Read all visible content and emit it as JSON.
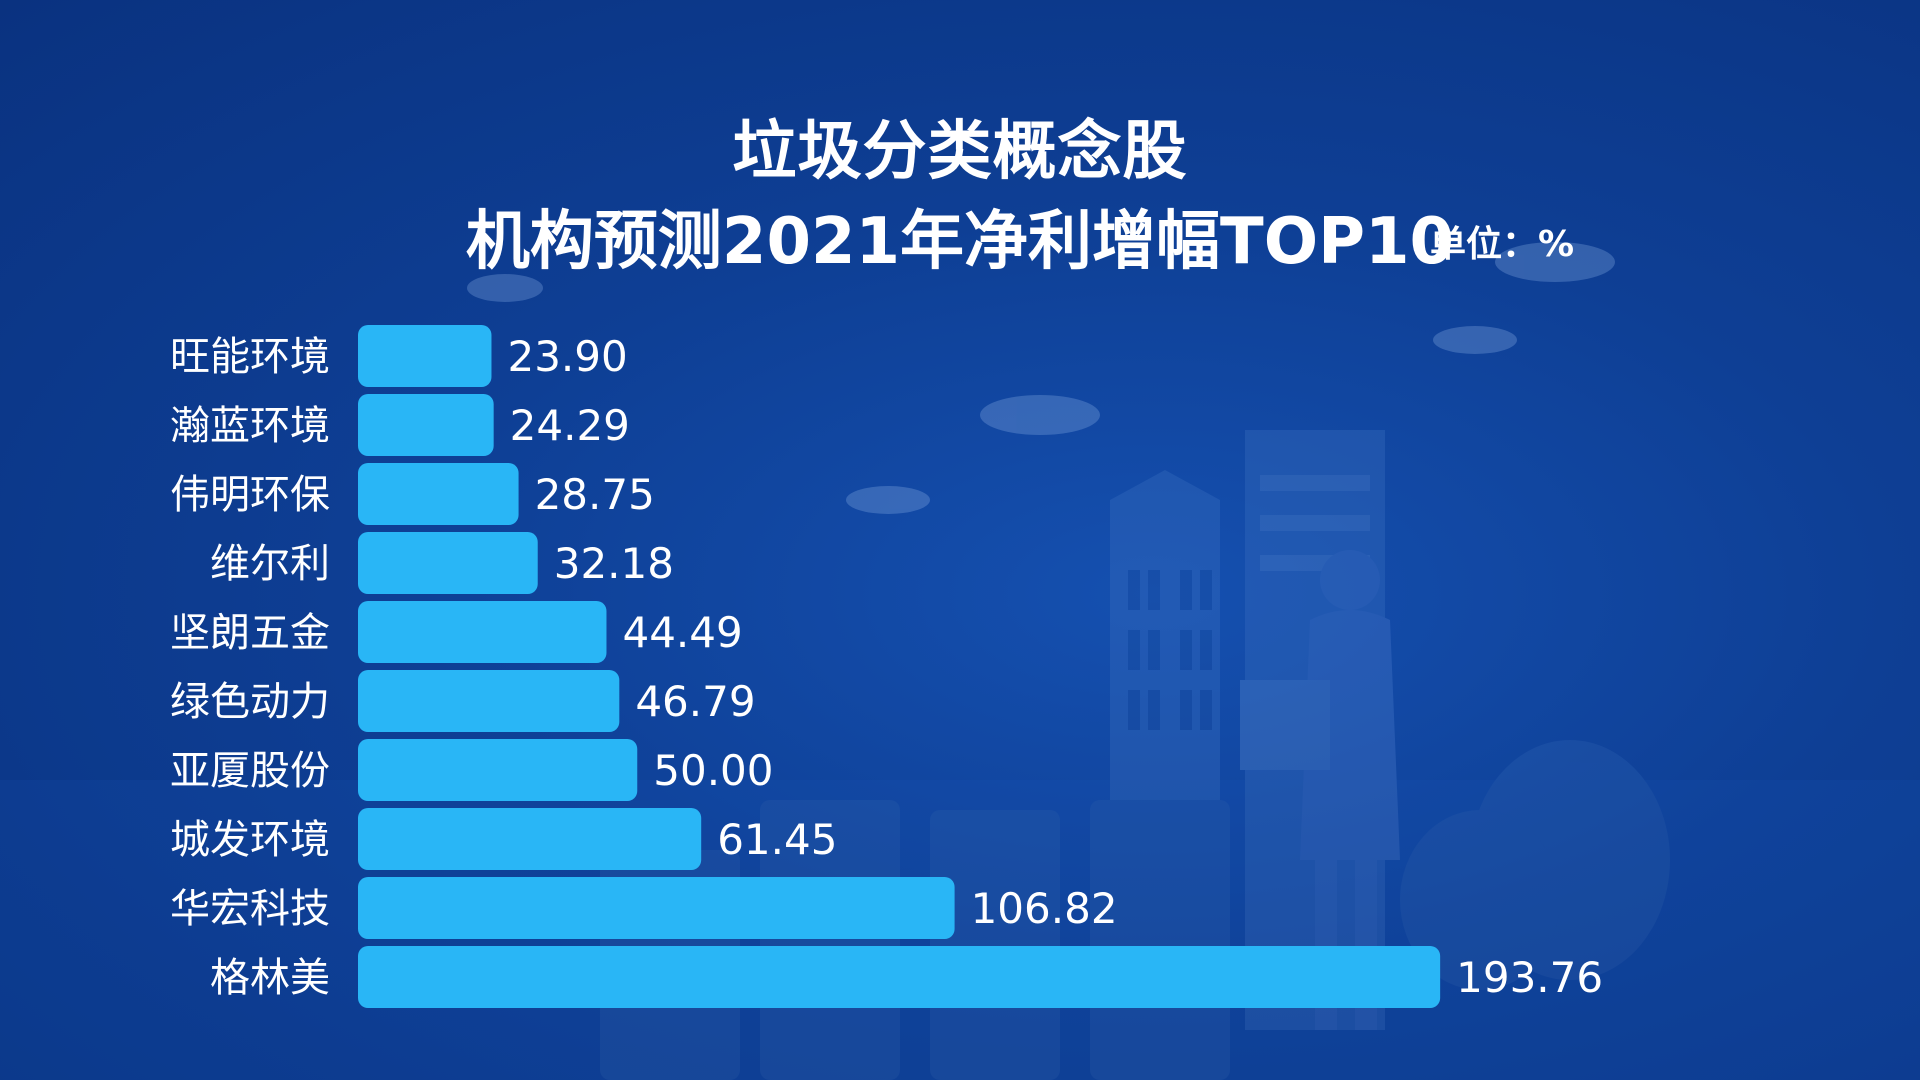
{
  "title_line1": "垃圾分类概念股",
  "title_line2": "机构预测2021年净利增幅TOP10",
  "unit_label": "单位：%",
  "colors": {
    "bar": "#29b6f6",
    "background": "#0e3f95",
    "text": "#ffffff"
  },
  "chart_data": {
    "type": "bar",
    "orientation": "horizontal",
    "title": "垃圾分类概念股 机构预测2021年净利增幅TOP10",
    "unit": "%",
    "categories": [
      "旺能环境",
      "瀚蓝环境",
      "伟明环保",
      "维尔利",
      "坚朗五金",
      "绿色动力",
      "亚厦股份",
      "城发环境",
      "华宏科技",
      "格林美"
    ],
    "values": [
      23.9,
      24.29,
      28.75,
      32.18,
      44.49,
      46.79,
      50.0,
      61.45,
      106.82,
      193.76
    ],
    "value_labels": [
      "23.90",
      "24.29",
      "28.75",
      "32.18",
      "44.49",
      "46.79",
      "50.00",
      "61.45",
      "106.82",
      "193.76"
    ],
    "xlim": [
      0,
      200
    ],
    "grid": false,
    "legend": "none"
  }
}
